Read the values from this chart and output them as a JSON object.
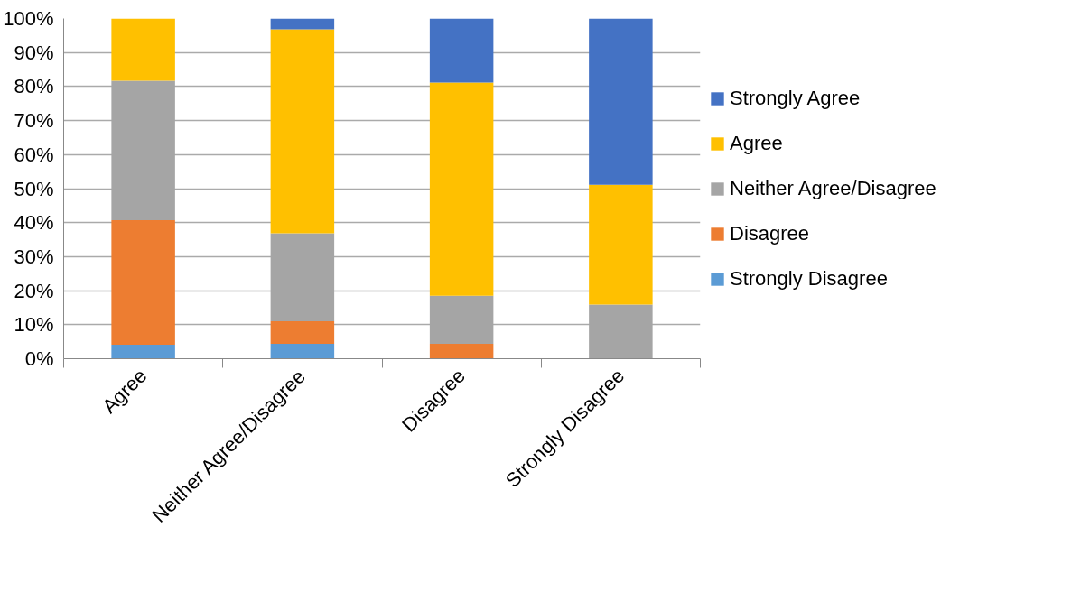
{
  "chart_data": {
    "type": "bar",
    "stacked": true,
    "categories": [
      "Agree",
      "Neither Agree/Disagree",
      "Disagree",
      "Strongly Disagree"
    ],
    "series": [
      {
        "name": "Strongly Disagree",
        "color": "#5b9bd5",
        "values": [
          4.1,
          4.4,
          0,
          0
        ]
      },
      {
        "name": "Disagree",
        "color": "#ed7d31",
        "values": [
          36.6,
          6.6,
          4.4,
          0
        ]
      },
      {
        "name": "Neither Agree/Disagree",
        "color": "#a5a5a5",
        "values": [
          41.0,
          25.9,
          14.1,
          15.9
        ]
      },
      {
        "name": "Agree",
        "color": "#ffc000",
        "values": [
          18.3,
          59.9,
          62.7,
          35.2
        ]
      },
      {
        "name": "Strongly Agree",
        "color": "#4472c4",
        "values": [
          0,
          3.2,
          18.8,
          48.9
        ]
      }
    ],
    "ylim": [
      0,
      100
    ],
    "yticks": [
      {
        "value": 0,
        "label": "0%"
      },
      {
        "value": 10,
        "label": "10%"
      },
      {
        "value": 20,
        "label": "20%"
      },
      {
        "value": 30,
        "label": "30%"
      },
      {
        "value": 40,
        "label": "40%"
      },
      {
        "value": 50,
        "label": "50%"
      },
      {
        "value": 60,
        "label": "60%"
      },
      {
        "value": 70,
        "label": "70%"
      },
      {
        "value": 80,
        "label": "80%"
      },
      {
        "value": 90,
        "label": "90%"
      },
      {
        "value": 100,
        "label": "100%"
      }
    ],
    "grid": "y",
    "legend": "right"
  }
}
